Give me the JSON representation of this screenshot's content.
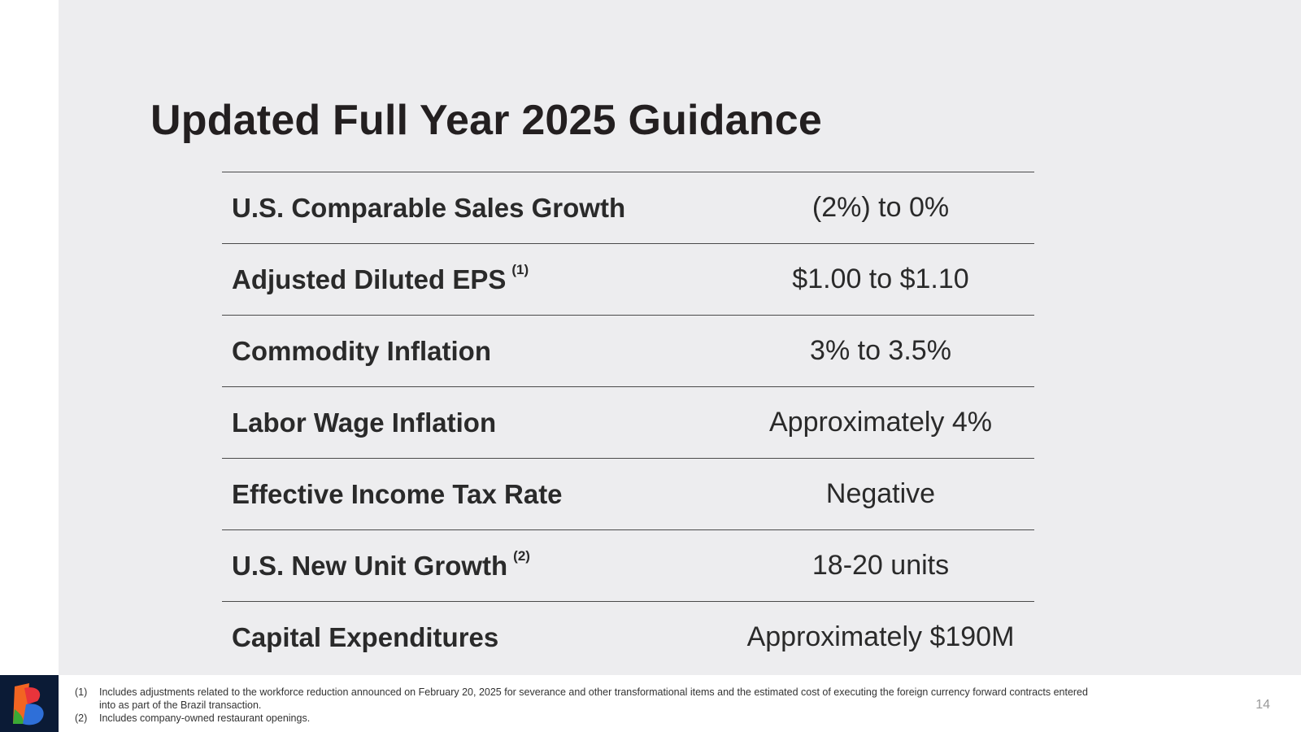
{
  "slide": {
    "title": "Updated Full Year 2025 Guidance",
    "page_number": "14"
  },
  "guidance": [
    {
      "metric": "U.S. Comparable Sales Growth",
      "footnote": "",
      "value": "(2%) to 0%"
    },
    {
      "metric": "Adjusted Diluted EPS",
      "footnote": "(1)",
      "value": "$1.00 to $1.10"
    },
    {
      "metric": "Commodity Inflation",
      "footnote": "",
      "value": "3% to 3.5%"
    },
    {
      "metric": "Labor Wage Inflation",
      "footnote": "",
      "value": "Approximately 4%"
    },
    {
      "metric": "Effective Income Tax Rate",
      "footnote": "",
      "value": "Negative"
    },
    {
      "metric": "U.S. New Unit Growth",
      "footnote": "(2)",
      "value": "18-20 units"
    },
    {
      "metric": "Capital Expenditures",
      "footnote": "",
      "value": "Approximately $190M"
    }
  ],
  "footnotes": [
    {
      "number": "(1)",
      "text": "Includes adjustments related to the workforce reduction announced on February 20, 2025 for severance and other transformational items and the estimated cost of executing the foreign currency forward contracts entered into as part of the Brazil transaction."
    },
    {
      "number": "(2)",
      "text": "Includes company-owned restaurant openings."
    }
  ],
  "colors": {
    "panel_background": "#ededef",
    "title_text": "#231f20",
    "logo_background": "#0b1b36",
    "logo_orange": "#f26522",
    "logo_green": "#3aaa35",
    "logo_blue": "#2e6fd8"
  },
  "icons": {
    "logo": "company-logo-icon"
  }
}
